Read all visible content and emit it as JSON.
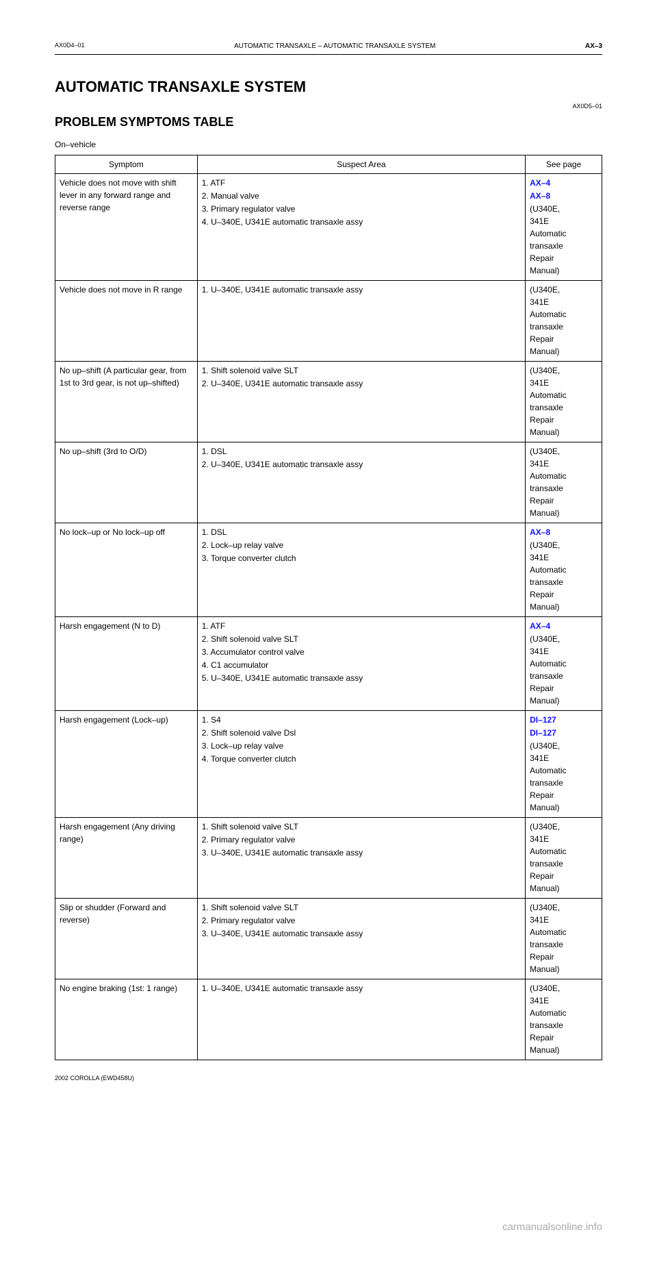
{
  "header": {
    "doc_code": "AX0D4–01",
    "page_title_line1": "AUTOMATIC TRANSAXLE – AUTOMATIC TRANSAXLE SYSTEM",
    "page_num": "AX–3"
  },
  "main_heading": "AUTOMATIC TRANSAXLE SYSTEM",
  "sub_code": "AX0D5–01",
  "sub_heading": "PROBLEM SYMPTOMS TABLE",
  "section1_intro": "On–vehicle",
  "columns": {
    "symptom": "Symptom",
    "suspect": "Suspect Area",
    "page": "See page"
  },
  "table1": [
    {
      "symptom": "Vehicle does not move with shift lever in any forward range and reverse range",
      "areas": [
        "1. ATF",
        "2. Manual valve",
        "3. Primary regulator valve",
        "4. U–340E, U341E automatic transaxle assy"
      ],
      "pages": [
        {
          "text": "AX–4",
          "link": true
        },
        {
          "text": "AX–8",
          "link": true
        },
        {
          "text": "(U340E,\n341E\nAutomatic\ntransaxle\nRepair\nManual)",
          "link": false
        }
      ]
    },
    {
      "symptom": "Vehicle does not move in R range",
      "areas": [
        "1. U–340E, U341E automatic transaxle assy"
      ],
      "pages": [
        {
          "text": "(U340E,\n341E\nAutomatic\ntransaxle\nRepair\nManual)",
          "link": false
        }
      ]
    },
    {
      "symptom": "No up–shift (A particular gear, from 1st to 3rd gear, is not up–shifted)",
      "areas": [
        "1. Shift solenoid valve SLT",
        "2. U–340E, U341E automatic transaxle assy"
      ],
      "pages": [
        {
          "text": "(U340E,\n341E\nAutomatic\ntransaxle\nRepair\nManual)",
          "link": false
        }
      ]
    },
    {
      "symptom": "No up–shift (3rd to O/D)",
      "areas": [
        "1. DSL",
        "2. U–340E, U341E automatic transaxle assy"
      ],
      "pages": [
        {
          "text": "(U340E,\n341E\nAutomatic\ntransaxle\nRepair\nManual)",
          "link": false
        }
      ]
    },
    {
      "symptom": "No lock–up or No lock–up off",
      "areas": [
        "1. DSL",
        "2. Lock–up relay valve",
        "3. Torque converter clutch"
      ],
      "pages": [
        {
          "text": "AX–8",
          "link": true
        },
        {
          "text": "(U340E,\n341E\nAutomatic\ntransaxle\nRepair\nManual)",
          "link": false
        }
      ]
    },
    {
      "symptom": "Harsh engagement (N to D)",
      "areas": [
        "1. ATF",
        "2. Shift solenoid valve SLT",
        "3. Accumulator control valve",
        "4. C1 accumulator",
        "5. U–340E, U341E automatic transaxle assy"
      ],
      "pages": [
        {
          "text": "AX–4",
          "link": true
        },
        {
          "text": "(U340E,\n341E\nAutomatic\ntransaxle\nRepair\nManual)",
          "link": false
        }
      ]
    },
    {
      "symptom": "Harsh engagement (Lock–up)",
      "areas": [
        "1. S4",
        "2. Shift solenoid valve Dsl",
        "3. Lock–up relay valve",
        "4. Torque converter clutch"
      ],
      "pages": [
        {
          "text": "DI–127",
          "link": true
        },
        {
          "text": "DI–127",
          "link": true
        },
        {
          "text": "(U340E,\n341E\nAutomatic\ntransaxle\nRepair\nManual)",
          "link": false
        }
      ]
    },
    {
      "symptom": "Harsh engagement (Any driving range)",
      "areas": [
        "1. Shift solenoid valve SLT",
        "2. Primary regulator valve",
        "3. U–340E, U341E automatic transaxle assy"
      ],
      "pages": [
        {
          "text": "(U340E,\n341E\nAutomatic\ntransaxle\nRepair\nManual)",
          "link": false
        }
      ]
    },
    {
      "symptom": "Slip or shudder (Forward and reverse)",
      "areas": [
        "1. Shift solenoid valve SLT",
        "2. Primary regulator valve",
        "3. U–340E, U341E automatic transaxle assy"
      ],
      "pages": [
        {
          "text": "(U340E,\n341E\nAutomatic\ntransaxle\nRepair\nManual)",
          "link": false
        }
      ]
    },
    {
      "symptom": "No engine braking (1st: 1 range)",
      "areas": [
        "1. U–340E, U341E automatic transaxle assy"
      ],
      "pages": [
        {
          "text": "(U340E,\n341E\nAutomatic\ntransaxle\nRepair\nManual)",
          "link": false
        }
      ]
    }
  ],
  "bottom_line": "2002 COROLLA (EWD458U)",
  "footer": "carmanualsonline.info"
}
